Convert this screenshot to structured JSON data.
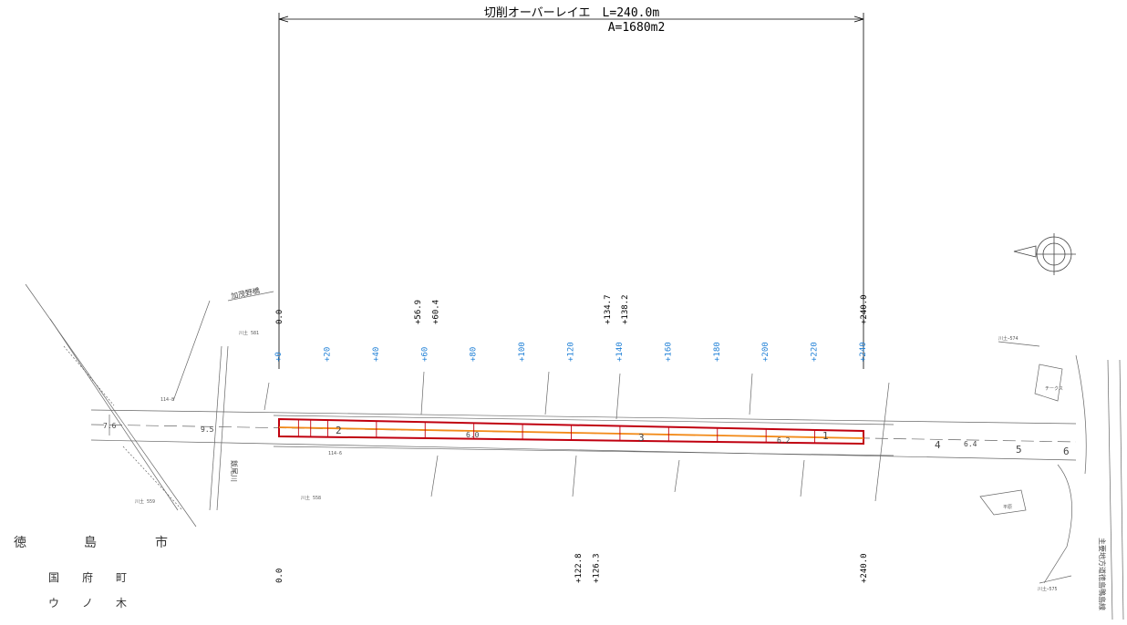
{
  "dimension": {
    "title": "切削オーバーレイエ　L=240.0m",
    "area": "A=1680m2"
  },
  "top_stations": [
    "0.0",
    "+56.9",
    "+60.4",
    "+134.7",
    "+138.2",
    "+240.0"
  ],
  "bottom_stations": [
    "0.0",
    "+122.8",
    "+126.3",
    "+240.0"
  ],
  "grid_stations": [
    "+0",
    "+20",
    "+40",
    "+60",
    "+80",
    "+100",
    "+120",
    "+140",
    "+160",
    "+180",
    "+200",
    "+220",
    "+240"
  ],
  "place_names": {
    "city": [
      "徳",
      "島",
      "市"
    ],
    "town": [
      "国",
      "府",
      "町"
    ],
    "area": [
      "ウ",
      "ノ",
      "木"
    ]
  },
  "map_labels": {
    "bridge": "加茂野橋",
    "river": "飯尾川",
    "tag_left1": "川土 581",
    "tag_left2": "川土 558",
    "tag_left3": "川土 559",
    "tag_right1": "川土ｰ574",
    "tag_right2": "川土ｰ575",
    "tag_mid1": "114-8",
    "tag_mid2": "114-6",
    "shop": "チークス",
    "house": "平原",
    "rail": "主要地方道徳島鴨島線",
    "widths": [
      "7.6",
      "9.5",
      "6.4",
      "6.0",
      "6.2"
    ],
    "blocks": [
      "1",
      "2",
      "3",
      "4",
      "5",
      "6"
    ]
  },
  "colors": {
    "work_outline": "#c0000f",
    "centerline": "#f28a18",
    "station_blue": "#1e7fd6",
    "drawing": "#555555"
  }
}
